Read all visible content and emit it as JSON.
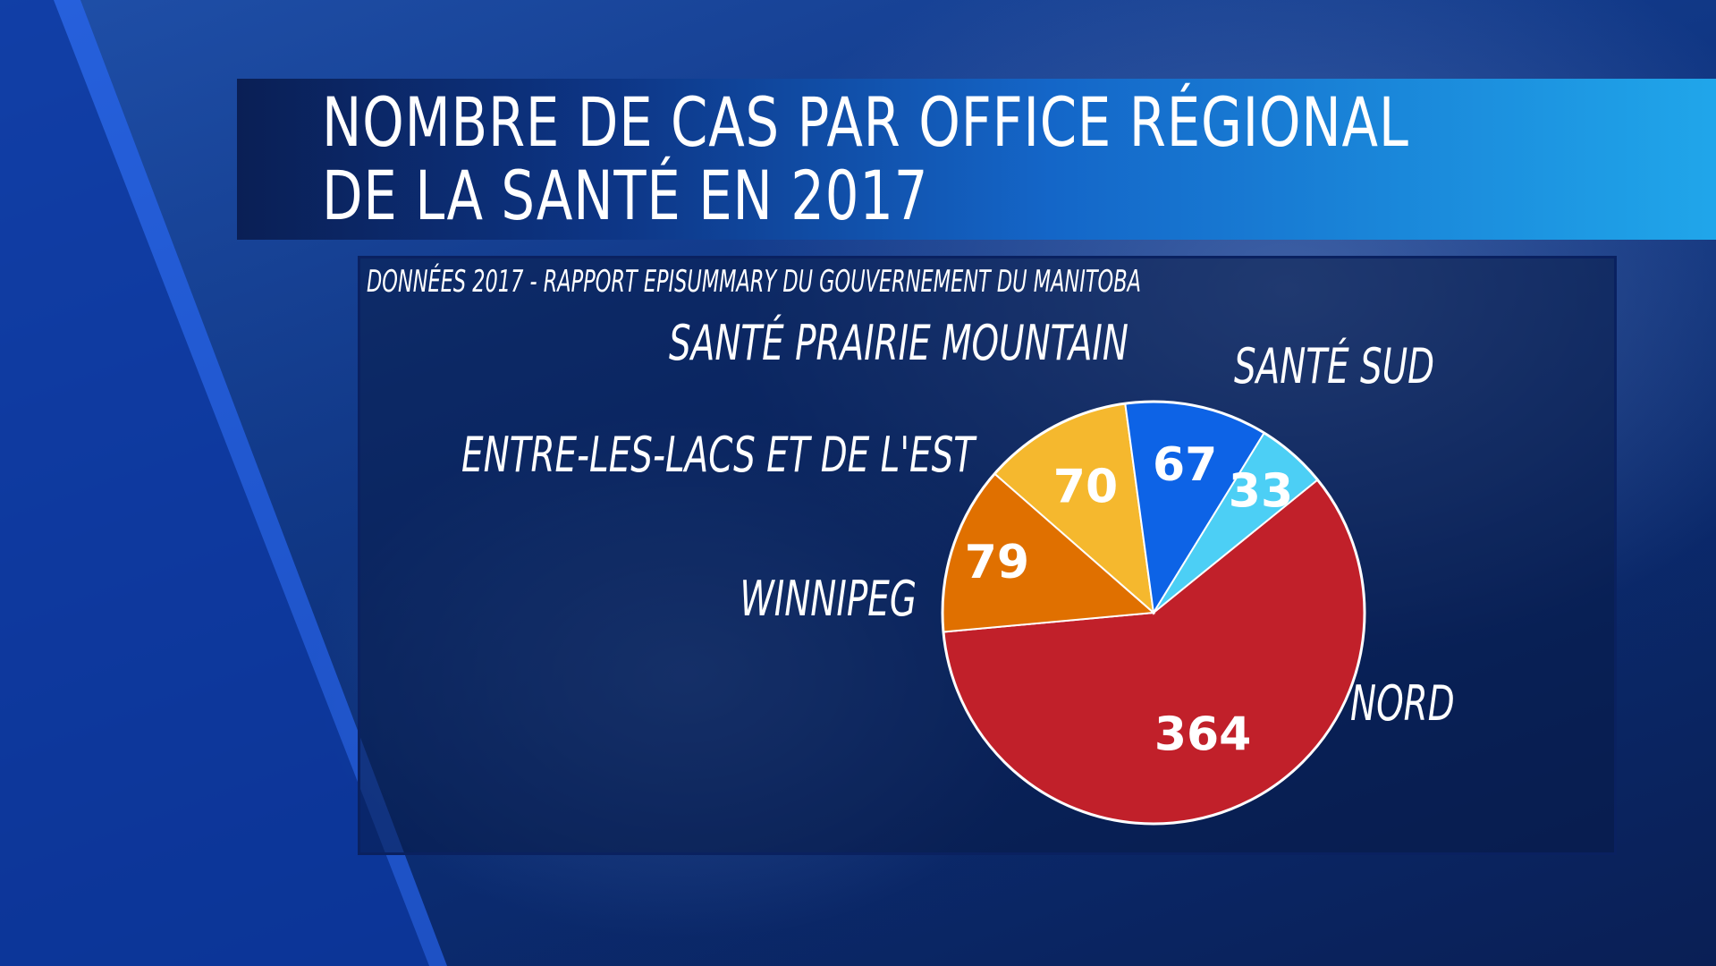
{
  "title": {
    "line1": "NOMBRE DE CAS PAR OFFICE RÉGIONAL",
    "line2": "DE LA SANTÉ EN 2017"
  },
  "source": "DONNÉES 2017 -  RAPPORT EPISUMMARY DU GOUVERNEMENT DU MANITOBA",
  "chart_data": {
    "type": "pie",
    "categories": [
      "NORD",
      "WINNIPEG",
      "ENTRE-LES-LACS ET DE L'EST",
      "SANTÉ PRAIRIE MOUNTAIN",
      "SANTÉ SUD"
    ],
    "values": [
      364,
      79,
      70,
      67,
      33
    ],
    "colors": [
      "#c1202a",
      "#e07000",
      "#f5b82e",
      "#0d63e6",
      "#4ccff5"
    ],
    "title": "NOMBRE DE CAS PAR OFFICE RÉGIONAL DE LA SANTÉ EN 2017",
    "legend": "none",
    "data_labels": "inside"
  }
}
